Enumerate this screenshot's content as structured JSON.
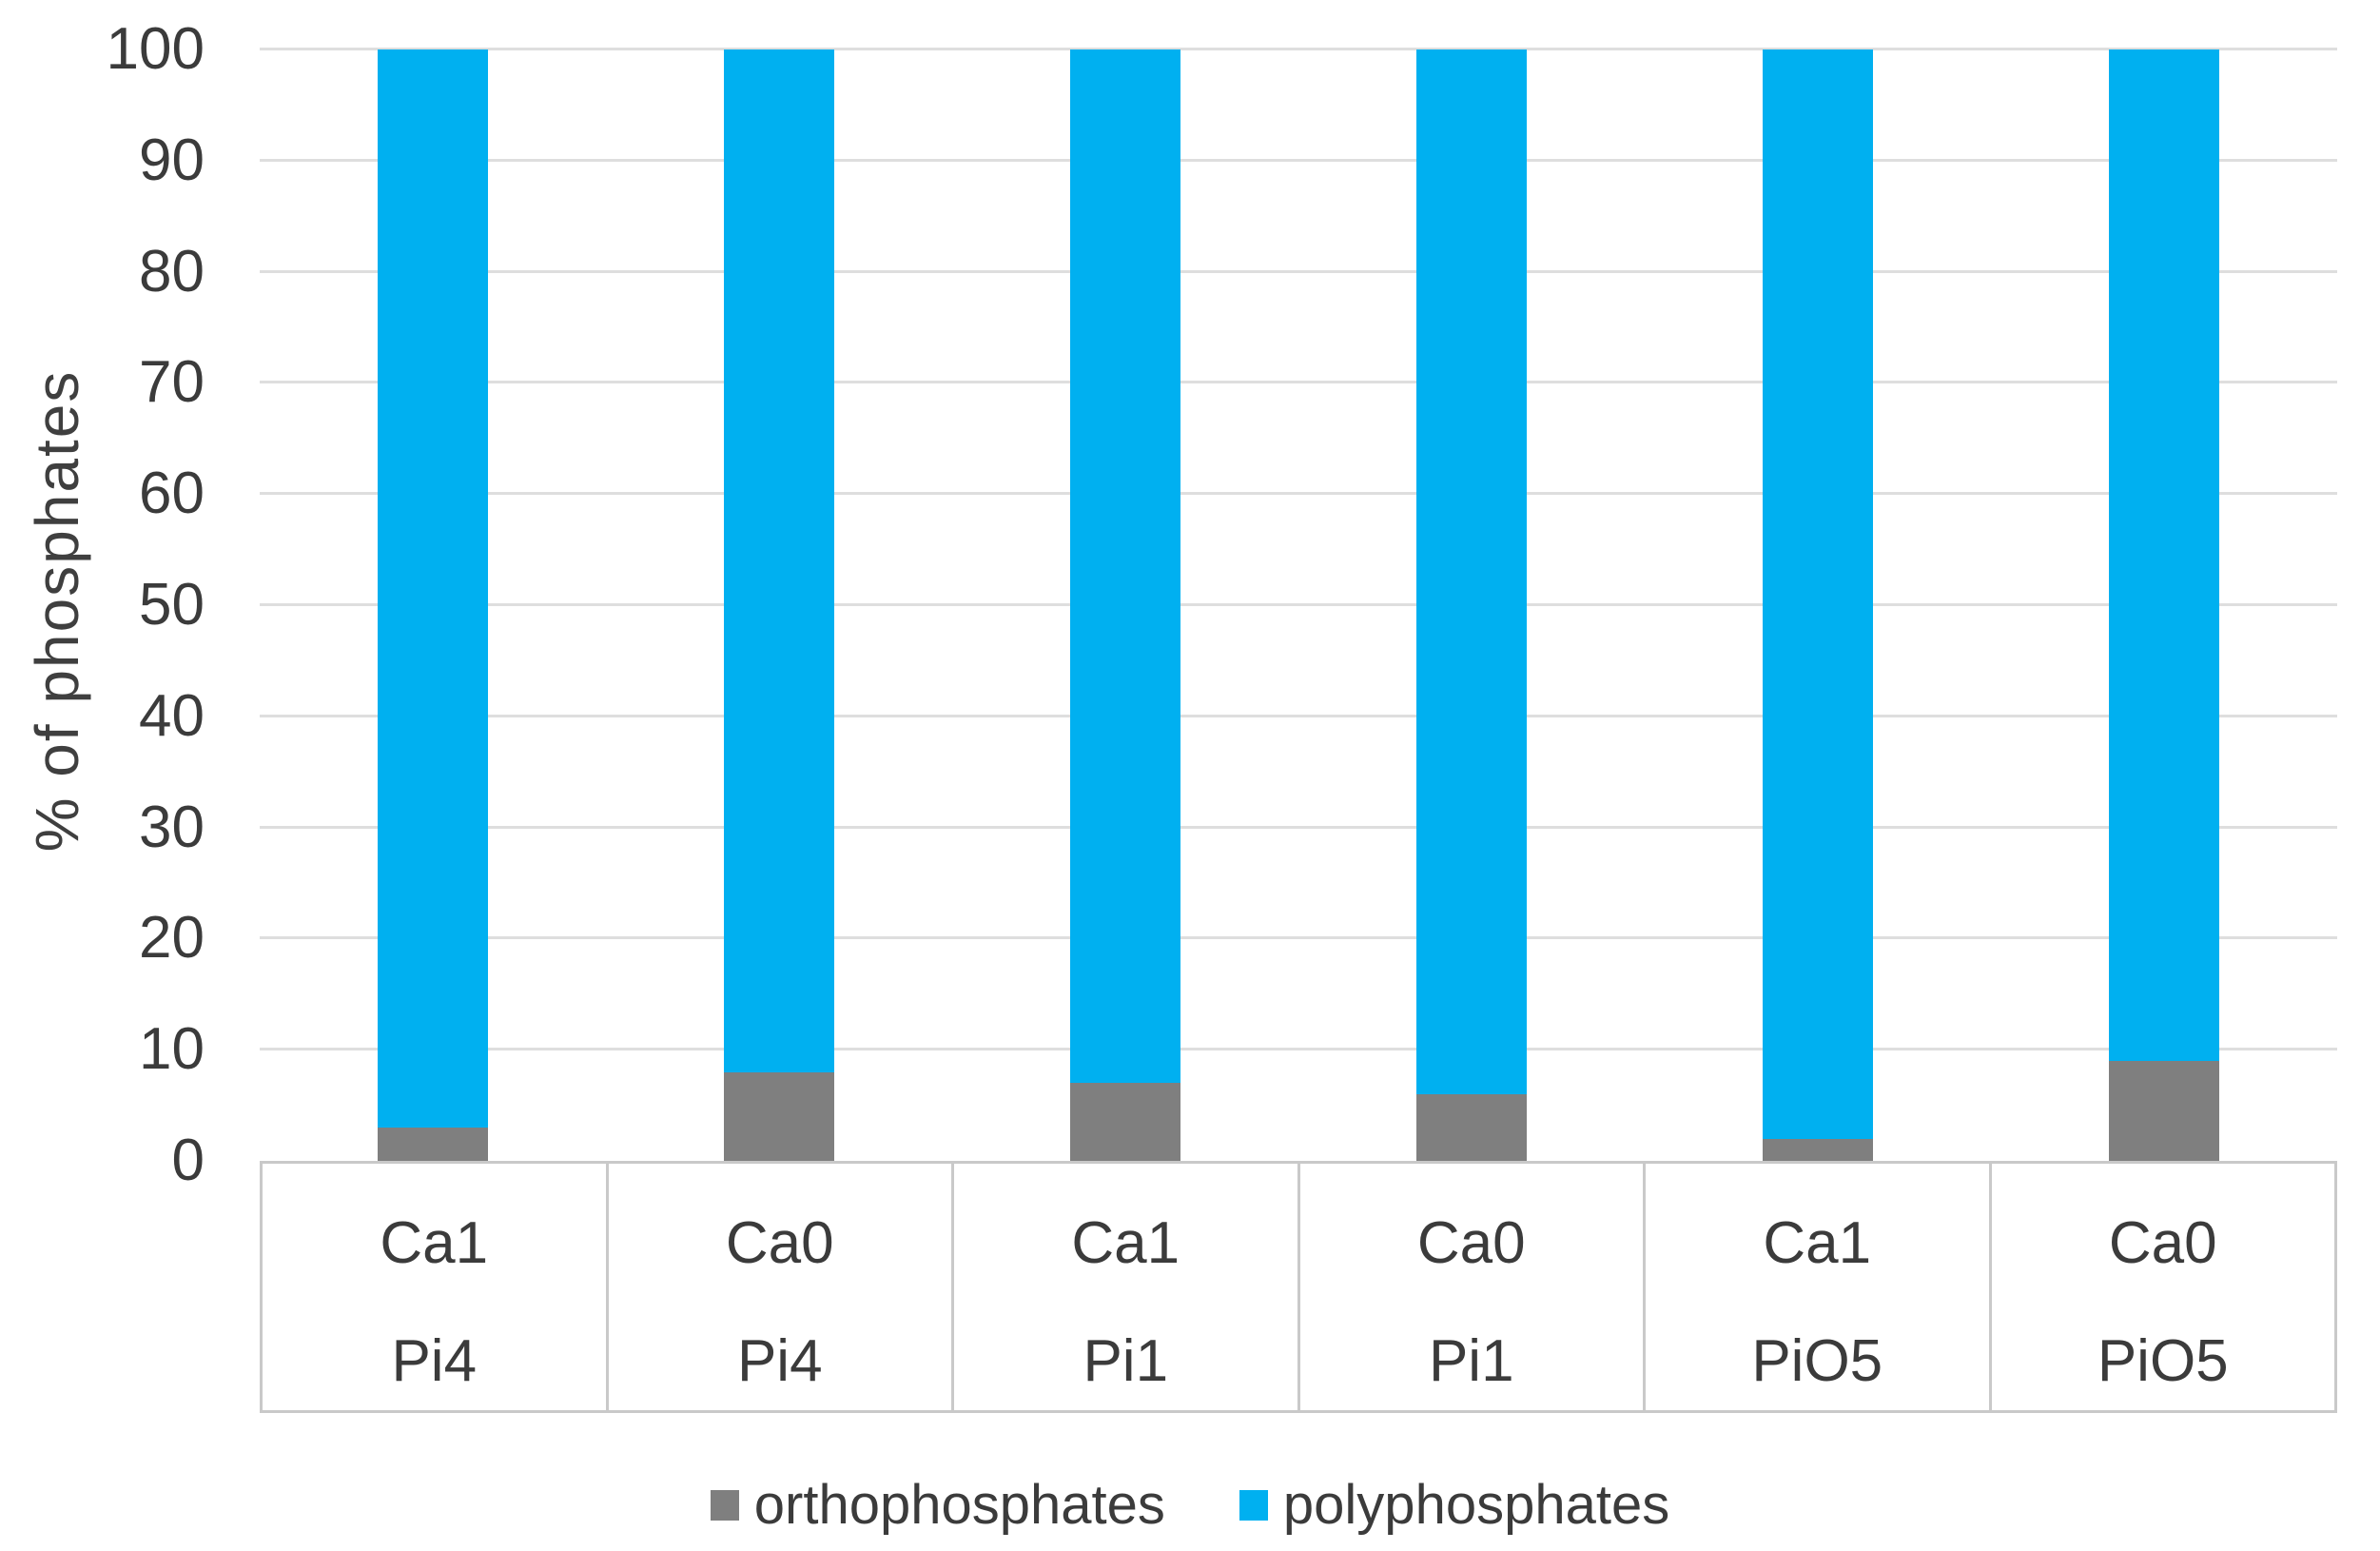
{
  "chart_data": {
    "type": "bar",
    "stacked": true,
    "orientation": "vertical",
    "title": "",
    "xlabel": "",
    "ylabel": "% of phosphates",
    "ylim": [
      0,
      100
    ],
    "yticks": [
      0,
      10,
      20,
      30,
      40,
      50,
      60,
      70,
      80,
      90,
      100
    ],
    "grid": true,
    "legend_position": "bottom",
    "categories": [
      {
        "line1": "Ca1",
        "line2": "Pi4"
      },
      {
        "line1": "Ca0",
        "line2": "Pi4"
      },
      {
        "line1": "Ca1",
        "line2": "Pi1"
      },
      {
        "line1": "Ca0",
        "line2": "Pi1"
      },
      {
        "line1": "Ca1",
        "line2": "PiO5"
      },
      {
        "line1": "Ca0",
        "line2": "PiO5"
      }
    ],
    "series": [
      {
        "name": "orthophosphates",
        "color": "#7F7F7F",
        "values": [
          3,
          8,
          7,
          6,
          2,
          9
        ]
      },
      {
        "name": "polyphosphates",
        "color": "#00B0F0",
        "values": [
          97,
          92,
          93,
          94,
          98,
          91
        ]
      }
    ]
  },
  "legend": {
    "items": [
      {
        "label": "orthophosphates",
        "color": "#7F7F7F"
      },
      {
        "label": "polyphosphates",
        "color": "#00B0F0"
      }
    ]
  },
  "colors": {
    "background": "#FFFFFF",
    "gridline": "#DEDEDE",
    "axis_line": "#C9C9C9",
    "text": "#3B3B3B",
    "orthophosphates": "#7F7F7F",
    "polyphosphates": "#00B0F0"
  }
}
